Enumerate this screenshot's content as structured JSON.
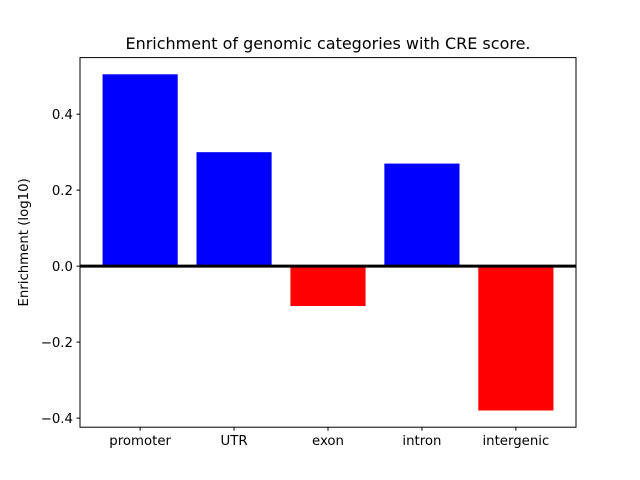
{
  "figure": {
    "background": "#ffffff"
  },
  "chart_data": {
    "type": "bar",
    "title": "Enrichment of genomic categories with CRE score.",
    "xlabel": "",
    "ylabel": "Enrichment (log10)",
    "categories": [
      "promoter",
      "UTR",
      "exon",
      "intron",
      "intergenic"
    ],
    "values": [
      0.505,
      0.3,
      -0.105,
      0.27,
      -0.38
    ],
    "bar_colors": [
      "#0000ff",
      "#0000ff",
      "#ff0000",
      "#0000ff",
      "#ff0000"
    ],
    "positive_color": "#0000ff",
    "negative_color": "#ff0000",
    "yticks": [
      -0.4,
      -0.2,
      0.0,
      0.2,
      0.4
    ],
    "ylim": [
      -0.424,
      0.549
    ],
    "bar_width_fraction": 0.8,
    "x_margin_units": 0.64,
    "zero_line": true,
    "zero_line_color": "#000000",
    "grid": false,
    "legend_position": "none",
    "frame_color": "#000000",
    "text_color": "#000000"
  }
}
